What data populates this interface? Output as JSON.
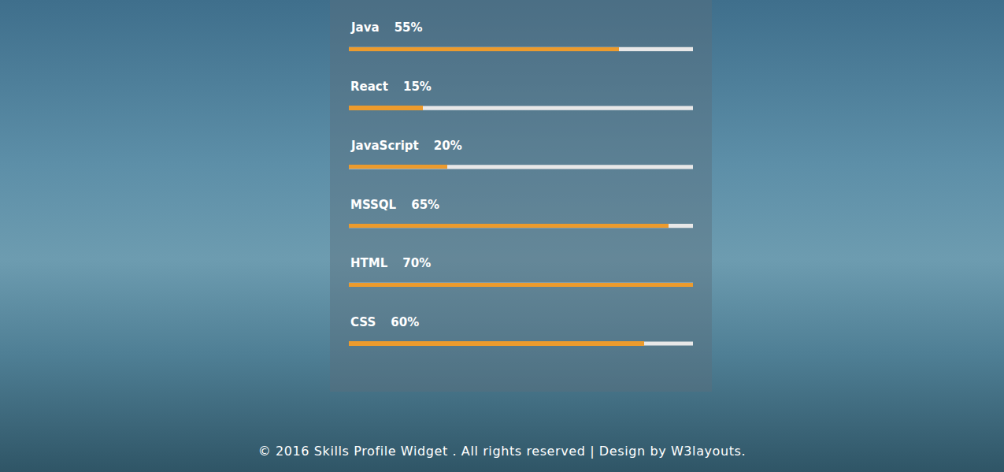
{
  "chart_data": {
    "type": "bar",
    "orientation": "horizontal",
    "categories": [
      "Java",
      "React",
      "JavaScript",
      "MSSQL",
      "HTML",
      "CSS"
    ],
    "values": [
      55,
      15,
      20,
      65,
      70,
      60
    ],
    "value_labels": [
      "55%",
      "15%",
      "20%",
      "65%",
      "70%",
      "60%"
    ],
    "data_labels": true,
    "color": "#ec9b2d",
    "xlim": [
      0,
      70
    ],
    "grid": false,
    "tick_labels": false,
    "annotations": [
      "© 2016 Skills Profile Widget . All rights reserved | Design by W3layouts."
    ]
  }
}
